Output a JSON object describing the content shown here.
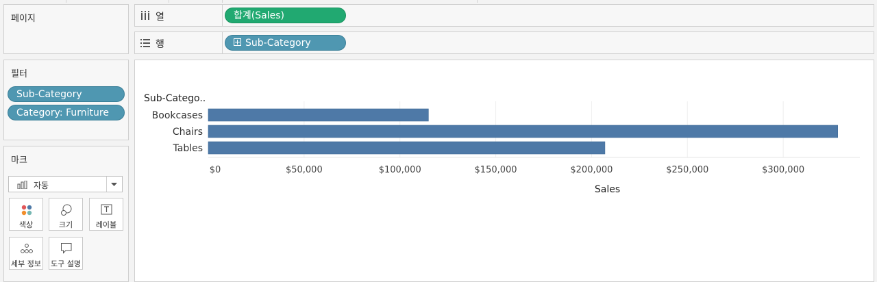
{
  "shelves": {
    "pages_title": "페이지",
    "columns_label": "열",
    "rows_label": "행",
    "columns_pill": "합계(Sales)",
    "rows_pill": "Sub-Category"
  },
  "filters": {
    "title": "필터",
    "items": [
      "Sub-Category",
      "Category: Furniture"
    ]
  },
  "marks": {
    "title": "마크",
    "type_selected": "자동",
    "buttons": [
      {
        "label": "색상",
        "icon": "color-dots-icon"
      },
      {
        "label": "크기",
        "icon": "size-icon"
      },
      {
        "label": "레이블",
        "icon": "label-icon"
      },
      {
        "label": "세부 정보",
        "icon": "detail-icon"
      },
      {
        "label": "도구 설명",
        "icon": "tooltip-icon"
      }
    ]
  },
  "colors": {
    "bar": "#4e79a7",
    "pill_blue": "#4f97b1",
    "pill_green": "#21a971"
  },
  "chart_data": {
    "type": "bar",
    "orientation": "horizontal",
    "row_header": "Sub-Catego..",
    "categories": [
      "Bookcases",
      "Chairs",
      "Tables"
    ],
    "values": [
      114880,
      328449,
      206966
    ],
    "xlabel": "Sales",
    "xlim": [
      0,
      340000
    ],
    "x_ticks": [
      "$0",
      "$50,000",
      "$100,000",
      "$150,000",
      "$200,000",
      "$250,000",
      "$300,000"
    ],
    "x_tick_values": [
      0,
      50000,
      100000,
      150000,
      200000,
      250000,
      300000
    ],
    "grid": true
  }
}
